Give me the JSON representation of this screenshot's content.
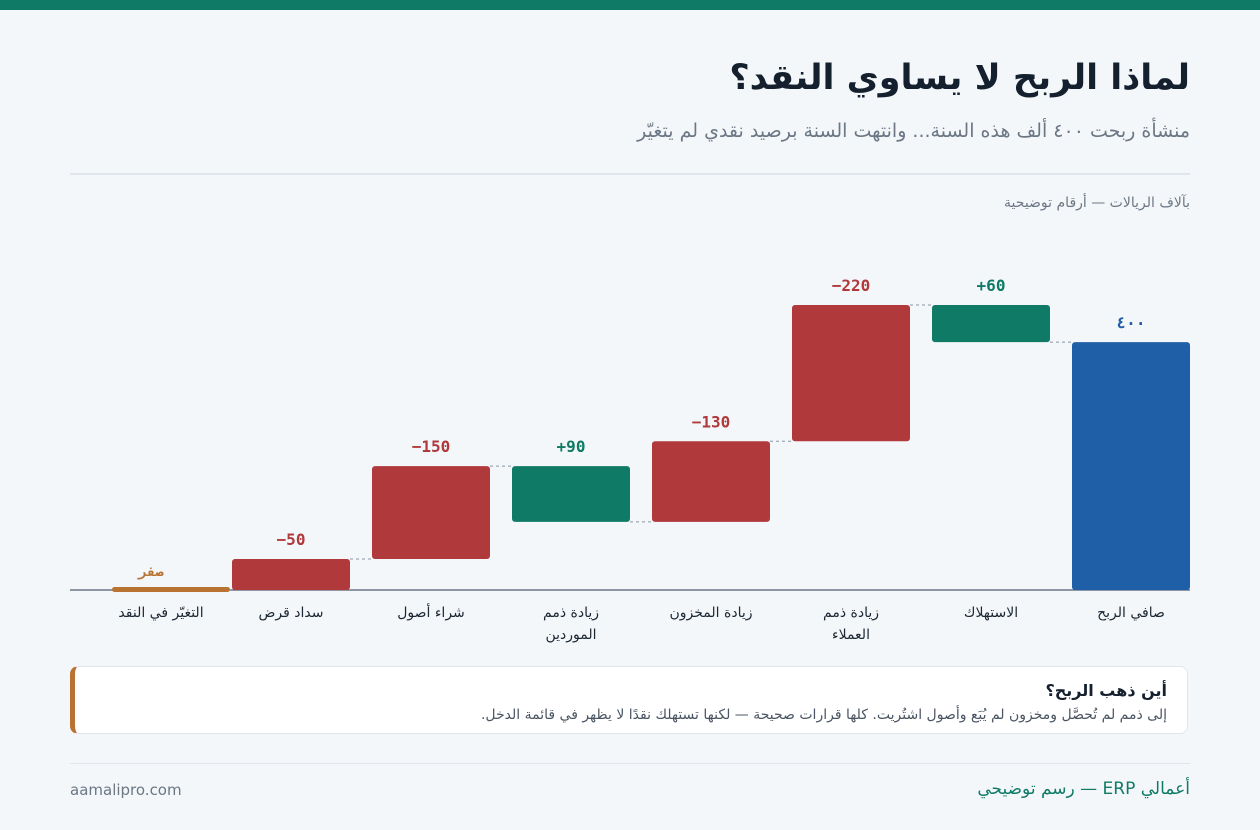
{
  "header": {
    "title": "لماذا الربح لا يساوي النقد؟",
    "subtitle": "منشأة ربحت ٤٠٠ ألف هذه السنة... وانتهت السنة برصيد نقدي لم يتغيّر"
  },
  "chart_data": {
    "type": "waterfall",
    "unit_label": "بآلاف الريالات — أرقام توضيحية",
    "categories": [
      "صافي الربح",
      "الاستهلاك",
      "زيادة ذمم العملاء",
      "زيادة المخزون",
      "زيادة ذمم الموردين",
      "شراء أصول",
      "سداد قرض",
      "التغيّر في النقد"
    ],
    "values": [
      400,
      60,
      -220,
      -130,
      90,
      -150,
      -50,
      0
    ],
    "value_labels": [
      "٤٠٠",
      "+60",
      "−220",
      "−130",
      "+90",
      "−150",
      "−50",
      "صفر"
    ],
    "measures": [
      "absolute",
      "relative",
      "relative",
      "relative",
      "relative",
      "relative",
      "relative",
      "total"
    ],
    "colors": {
      "absolute": "#1f5fa8",
      "increase": "#0f7b66",
      "decrease": "#b0393b",
      "total": "#b87333"
    }
  },
  "note": {
    "title": "أين ذهب الربح؟",
    "text": "إلى ذمم لم تُحصَّل ومخزون لم يُبَع وأصول اشتُريت. كلها قرارات صحيحة — لكنها تستهلك نقدًا لا يظهر في قائمة الدخل."
  },
  "footer": {
    "brand": "أعمالي ERP — رسم توضيحي",
    "site": "aamalipro.com"
  }
}
